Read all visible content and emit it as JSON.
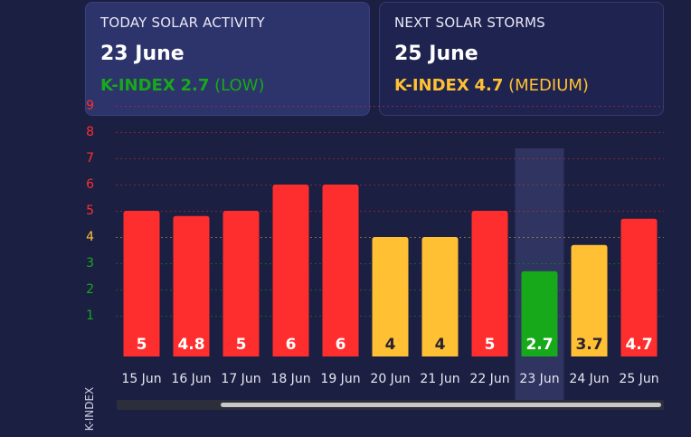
{
  "today": {
    "caption": "TODAY SOLAR ACTIVITY",
    "date": "23 June",
    "k_label": "K-INDEX",
    "k_value": "2.7",
    "level": "(LOW)",
    "color": "#17a91a"
  },
  "next": {
    "caption": "NEXT SOLAR STORMS",
    "date": "25 June",
    "k_label": "K-INDEX",
    "k_value": "4.7",
    "level": "(MEDIUM)",
    "color": "#ffc033"
  },
  "chart_data": {
    "type": "bar",
    "ylabel": "K-INDEX",
    "ylim": [
      0,
      9
    ],
    "y_ticks": [
      "1",
      "2",
      "3",
      "4",
      "5",
      "6",
      "7",
      "8",
      "9"
    ],
    "tick_colors": {
      "low": "#17a91a",
      "medium": "#ffc033",
      "high": "#ff2e2e"
    },
    "categories": [
      "15 Jun",
      "16 Jun",
      "17 Jun",
      "18 Jun",
      "19 Jun",
      "20 Jun",
      "21 Jun",
      "22 Jun",
      "23 Jun",
      "24 Jun",
      "25 Jun"
    ],
    "values": [
      5,
      4.8,
      5,
      6,
      6,
      4,
      4,
      5,
      2.7,
      3.7,
      4.7
    ],
    "value_labels": [
      "5",
      "4.8",
      "5",
      "6",
      "6",
      "4",
      "4",
      "5",
      "2.7",
      "3.7",
      "4.7"
    ],
    "bar_colors": [
      "#ff2e2e",
      "#ff2e2e",
      "#ff2e2e",
      "#ff2e2e",
      "#ff2e2e",
      "#ffc033",
      "#ffc033",
      "#ff2e2e",
      "#17a91a",
      "#ffc033",
      "#ff2e2e"
    ],
    "highlighted": "23 Jun",
    "grid": true
  }
}
